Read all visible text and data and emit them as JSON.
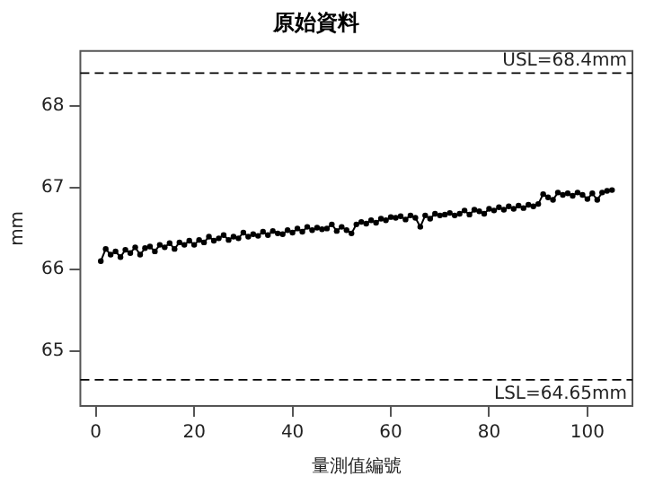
{
  "chart_data": {
    "type": "line",
    "title": "原始資料",
    "xlabel": "量測值編號",
    "ylabel": "mm",
    "x": [
      1,
      2,
      3,
      4,
      5,
      6,
      7,
      8,
      9,
      10,
      11,
      12,
      13,
      14,
      15,
      16,
      17,
      18,
      19,
      20,
      21,
      22,
      23,
      24,
      25,
      26,
      27,
      28,
      29,
      30,
      31,
      32,
      33,
      34,
      35,
      36,
      37,
      38,
      39,
      40,
      41,
      42,
      43,
      44,
      45,
      46,
      47,
      48,
      49,
      50,
      51,
      52,
      53,
      54,
      55,
      56,
      57,
      58,
      59,
      60,
      61,
      62,
      63,
      64,
      65,
      66,
      67,
      68,
      69,
      70,
      71,
      72,
      73,
      74,
      75,
      76,
      77,
      78,
      79,
      80,
      81,
      82,
      83,
      84,
      85,
      86,
      87,
      88,
      89,
      90,
      91,
      92,
      93,
      94,
      95,
      96,
      97,
      98,
      99,
      100,
      101,
      102,
      103,
      104,
      105
    ],
    "series": [
      {
        "color": "#000000",
        "values": [
          66.1,
          66.25,
          66.18,
          66.22,
          66.15,
          66.24,
          66.2,
          66.27,
          66.18,
          66.26,
          66.28,
          66.22,
          66.3,
          66.27,
          66.32,
          66.25,
          66.33,
          66.3,
          66.35,
          66.3,
          66.36,
          66.33,
          66.4,
          66.35,
          66.38,
          66.42,
          66.36,
          66.4,
          66.38,
          66.45,
          66.4,
          66.43,
          66.41,
          66.46,
          66.42,
          66.47,
          66.44,
          66.43,
          66.48,
          66.45,
          66.5,
          66.46,
          66.52,
          66.48,
          66.51,
          66.49,
          66.5,
          66.55,
          66.47,
          66.52,
          66.48,
          66.44,
          66.55,
          66.58,
          66.56,
          66.6,
          66.57,
          66.62,
          66.6,
          66.64,
          66.63,
          66.65,
          66.61,
          66.66,
          66.63,
          66.52,
          66.66,
          66.62,
          66.68,
          66.66,
          66.67,
          66.69,
          66.66,
          66.68,
          66.72,
          66.67,
          66.73,
          66.71,
          66.68,
          66.74,
          66.72,
          66.76,
          66.73,
          66.77,
          66.74,
          66.78,
          66.75,
          66.79,
          66.77,
          66.8,
          66.92,
          66.88,
          66.85,
          66.94,
          66.91,
          66.93,
          66.9,
          66.94,
          66.91,
          66.86,
          66.93,
          66.85,
          66.94,
          66.96,
          66.97
        ]
      }
    ],
    "xlim": [
      -3.16,
      109.16
    ],
    "xticks": [
      0,
      20,
      40,
      60,
      80,
      100
    ],
    "ylim": [
      64.33,
      68.67
    ],
    "yticks": [
      65,
      66,
      67,
      68
    ],
    "ref_lines": [
      {
        "axis": "y",
        "value": 68.4,
        "label": "USL=68.4mm",
        "line_style": "dashed",
        "color": "#000000"
      },
      {
        "axis": "y",
        "value": 64.65,
        "label": "LSL=64.65mm",
        "line_style": "dashed",
        "color": "#000000"
      }
    ],
    "marker": "circle",
    "line_style": "solid",
    "grid": false,
    "legend": false
  }
}
